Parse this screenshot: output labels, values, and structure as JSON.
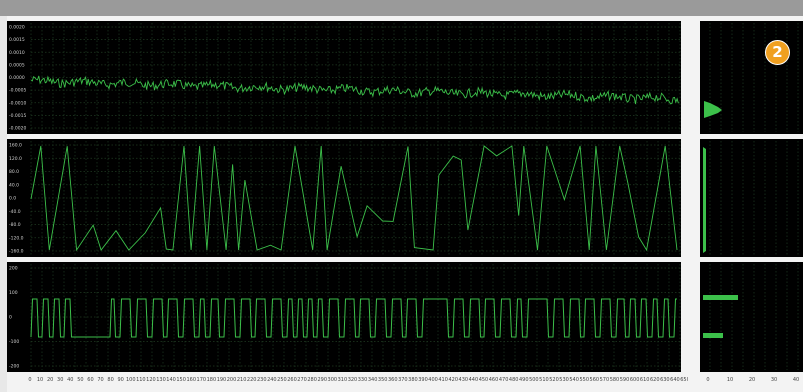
{
  "window": {
    "title_bar_color": "#9a9a9a",
    "background": "#f3f3f3"
  },
  "badge": {
    "label": "2",
    "color": "#f0a020"
  },
  "trace_color": "#3cc04a",
  "charts": {
    "panel1": {
      "y_ticks": [
        "0.0020",
        "0.0015",
        "0.0010",
        "0.0005",
        "0.0000",
        "-0.0005",
        "-0.0010",
        "-0.0015",
        "-0.0020"
      ]
    },
    "panel2": {
      "y_ticks": [
        "160.0",
        "120.0",
        "80.0",
        "40.0",
        "0.0",
        "-40.0",
        "-80.0",
        "-120.0",
        "-160.0"
      ]
    },
    "panel3": {
      "y_ticks": [
        "200",
        "100",
        "0",
        "-100",
        "-200"
      ]
    },
    "x_ticks": [
      "0",
      "10",
      "20",
      "30",
      "40",
      "50",
      "60",
      "70",
      "80",
      "90",
      "100",
      "110",
      "120",
      "130",
      "140",
      "150",
      "160",
      "170",
      "180",
      "190",
      "200",
      "210",
      "220",
      "230",
      "240",
      "250",
      "260",
      "270",
      "280",
      "290",
      "300",
      "310",
      "320",
      "330",
      "340",
      "350",
      "360",
      "370",
      "380",
      "390",
      "400",
      "410",
      "420",
      "430",
      "440",
      "450",
      "460",
      "470",
      "480",
      "490",
      "500",
      "510",
      "520",
      "530",
      "540",
      "550",
      "560",
      "570",
      "580",
      "590",
      "600",
      "610",
      "620",
      "630",
      "640",
      "650"
    ],
    "hist_x_ticks": [
      "0",
      "10",
      "20",
      "30",
      "40"
    ]
  },
  "chart_data": [
    {
      "type": "line",
      "name_hint": "panel1",
      "ylim": [
        -0.002,
        0.002
      ],
      "xlim": [
        0,
        650
      ],
      "series": [
        {
          "values_desc": "noisy signal around 0.0003"
        }
      ]
    },
    {
      "type": "line",
      "name_hint": "panel2",
      "ylim": [
        -160,
        160
      ],
      "xlim": [
        0,
        650
      ],
      "series": [
        {
          "values_desc": "zigzag between -160 and 160"
        }
      ]
    },
    {
      "type": "line",
      "name_hint": "panel3",
      "ylim": [
        -200,
        200
      ],
      "xlim": [
        0,
        650
      ],
      "series": [
        {
          "values_desc": "square wave between -80 and 100"
        }
      ]
    }
  ]
}
